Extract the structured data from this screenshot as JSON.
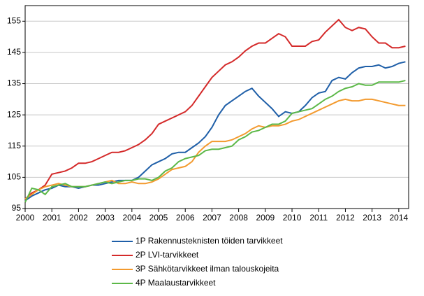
{
  "chart_data": {
    "type": "line",
    "x": [
      2000,
      2000.25,
      2000.5,
      2000.75,
      2001,
      2001.25,
      2001.5,
      2001.75,
      2002,
      2002.25,
      2002.5,
      2002.75,
      2003,
      2003.25,
      2003.5,
      2003.75,
      2004,
      2004.25,
      2004.5,
      2004.75,
      2005,
      2005.25,
      2005.5,
      2005.75,
      2006,
      2006.25,
      2006.5,
      2006.75,
      2007,
      2007.25,
      2007.5,
      2007.75,
      2008,
      2008.25,
      2008.5,
      2008.75,
      2009,
      2009.25,
      2009.5,
      2009.75,
      2010,
      2010.25,
      2010.5,
      2010.75,
      2011,
      2011.25,
      2011.5,
      2011.75,
      2012,
      2012.25,
      2012.5,
      2012.75,
      2013,
      2013.25,
      2013.5,
      2013.75,
      2014,
      2014.25
    ],
    "xlim": [
      2000,
      2014.37
    ],
    "xticks": [
      2000,
      2001,
      2002,
      2003,
      2004,
      2005,
      2006,
      2007,
      2008,
      2009,
      2010,
      2011,
      2012,
      2013,
      2014
    ],
    "ylim": [
      95,
      160
    ],
    "yticks": [
      95,
      105,
      115,
      125,
      135,
      145,
      155
    ],
    "grid": true,
    "legend": "bottom",
    "series": [
      {
        "name": "1P Rakennusteknisten töiden tarvikkeet",
        "color": "#1f5fa8",
        "values": [
          97.5,
          99,
          100,
          101,
          101.5,
          102.5,
          102,
          102,
          101.5,
          102,
          102.5,
          102.5,
          103,
          103.5,
          104,
          104,
          104,
          105,
          107,
          109,
          110,
          111,
          112.5,
          113,
          113,
          114.5,
          116,
          118,
          121,
          125,
          128,
          129.5,
          131,
          132.5,
          133.5,
          131,
          129,
          127,
          124.5,
          126,
          125.5,
          126,
          128,
          130.5,
          132,
          132.5,
          136,
          137,
          136.5,
          138.5,
          140,
          140.5,
          140.5,
          141,
          140,
          140.5,
          141.5,
          142
        ]
      },
      {
        "name": "2P LVI-tarvikkeet",
        "color": "#d42a2a",
        "values": [
          98,
          100,
          101,
          102.5,
          106,
          106.5,
          107,
          108,
          109.5,
          109.5,
          110,
          111,
          112,
          113,
          113,
          113.5,
          114.5,
          115.5,
          117,
          119,
          122,
          123,
          124,
          125,
          126,
          128,
          131,
          134,
          137,
          139,
          141,
          142,
          143.5,
          145.5,
          147,
          148,
          148,
          149.5,
          151,
          150,
          147,
          147,
          147,
          148.5,
          149,
          151.5,
          153.5,
          155.5,
          153,
          152,
          153,
          152.5,
          150,
          148,
          148,
          146.5,
          146.5,
          147
        ]
      },
      {
        "name": "3P Sähkötarvikkeet ilman talouskojeita",
        "color": "#f39a2e",
        "values": [
          98,
          99.5,
          101,
          102,
          102.5,
          103,
          102.5,
          102,
          102,
          102,
          102.5,
          103,
          103.5,
          104,
          103,
          103,
          103.5,
          103,
          103,
          103.5,
          104.5,
          106,
          107.5,
          108,
          108.5,
          110,
          113,
          115,
          116.5,
          116.5,
          116.5,
          117,
          118,
          119,
          120.5,
          121.5,
          121,
          121.5,
          121.5,
          122,
          123,
          123.5,
          124.5,
          125.5,
          126.5,
          127.5,
          128.5,
          129.5,
          130,
          129.5,
          129.5,
          130,
          130,
          129.5,
          129,
          128.5,
          128,
          128
        ]
      },
      {
        "name": "4P Maalaustarvikkeet",
        "color": "#5cb848",
        "values": [
          97,
          101.5,
          101,
          99.5,
          102,
          102.5,
          103,
          102,
          102,
          102,
          102.5,
          103,
          103.5,
          103,
          103.5,
          104,
          104,
          104.5,
          104.5,
          104,
          105,
          107,
          108,
          110,
          111,
          111.5,
          112,
          113.5,
          114,
          114,
          114.5,
          115,
          117,
          118,
          119.5,
          120,
          121,
          122,
          122,
          123,
          125.5,
          126,
          126.5,
          127,
          128.5,
          130,
          131,
          132.5,
          133.5,
          134,
          135,
          134.5,
          134.5,
          135.5,
          135.5,
          135.5,
          135.5,
          136
        ]
      }
    ]
  }
}
